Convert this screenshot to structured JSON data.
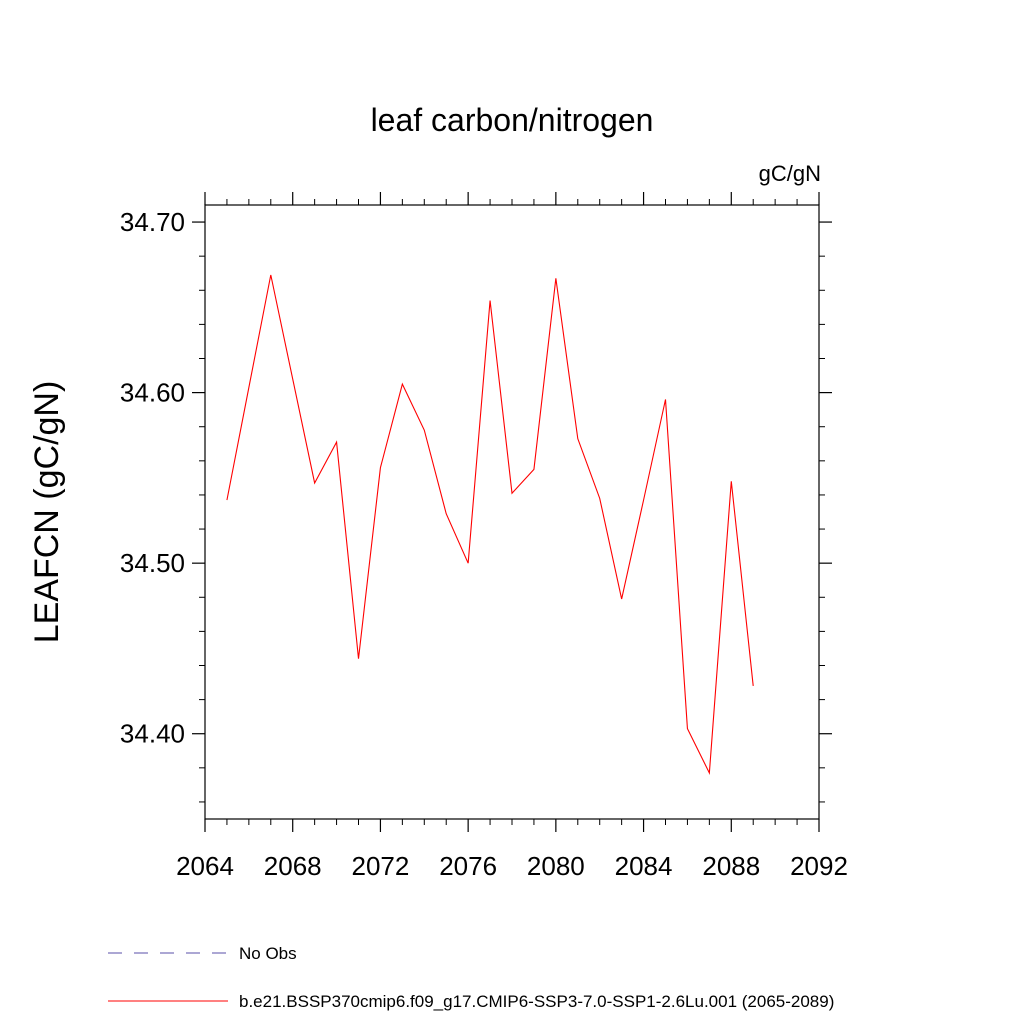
{
  "chart_data": {
    "type": "line",
    "title": "leaf carbon/nitrogen",
    "units": "gC/gN",
    "ylabel": "LEAFCN  (gC/gN)",
    "xlabel": "",
    "xlim": [
      2064,
      2092
    ],
    "ylim": [
      34.35,
      34.71
    ],
    "x_ticks": [
      2064,
      2068,
      2072,
      2076,
      2080,
      2084,
      2088,
      2092
    ],
    "y_ticks": [
      34.4,
      34.5,
      34.6,
      34.7
    ],
    "y_tick_labels": [
      "34.40",
      "34.50",
      "34.60",
      "34.70"
    ],
    "x_minor_step": 1,
    "y_minor_step": 0.02,
    "grid": false,
    "series": [
      {
        "name": "b.e21.BSSP370cmip6.f09_g17.CMIP6-SSP3-7.0-SSP1-2.6Lu.001 (2065-2089)",
        "color": "#ff0000",
        "style": "solid",
        "x": [
          2065,
          2066,
          2067,
          2068,
          2069,
          2070,
          2071,
          2072,
          2073,
          2074,
          2075,
          2076,
          2077,
          2078,
          2079,
          2080,
          2081,
          2082,
          2083,
          2084,
          2085,
          2086,
          2087,
          2088,
          2089
        ],
        "values": [
          34.537,
          34.603,
          34.669,
          34.608,
          34.547,
          34.571,
          34.444,
          34.556,
          34.605,
          34.578,
          34.529,
          34.5,
          34.654,
          34.541,
          34.555,
          34.667,
          34.573,
          34.538,
          34.479,
          34.537,
          34.596,
          34.403,
          34.377,
          34.548,
          34.428
        ]
      }
    ],
    "legend": {
      "placement": "bottom-left",
      "entries": [
        {
          "label": "No Obs",
          "color": "#5a4fa8",
          "style": "dashed"
        },
        {
          "label": "b.e21.BSSP370cmip6.f09_g17.CMIP6-SSP3-7.0-SSP1-2.6Lu.001 (2065-2089)",
          "color": "#ff0000",
          "style": "solid"
        }
      ]
    }
  }
}
